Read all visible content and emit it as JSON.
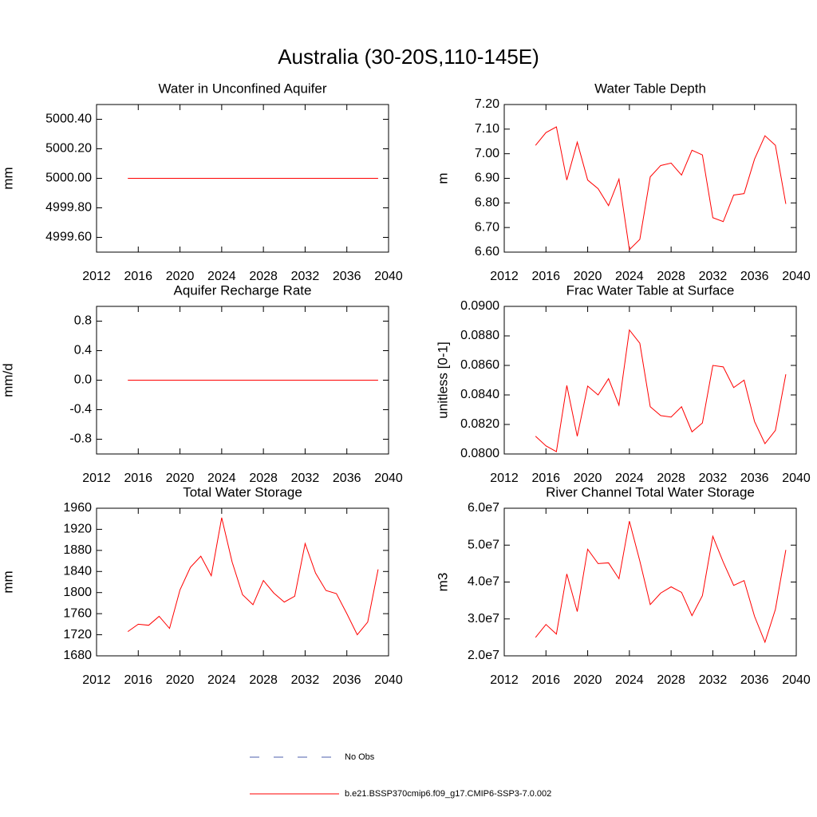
{
  "title": "Australia (30-20S,110-145E)",
  "legend": [
    {
      "name": "No Obs",
      "color": "#4d5fae",
      "dashed": true
    },
    {
      "name": "b.e21.BSSP370cmip6.f09_g17.CMIP6-SSP3-7.0.002",
      "color": "#ff0000",
      "dashed": false
    }
  ],
  "chart_data": [
    {
      "type": "line",
      "title": "Water in Unconfined Aquifer",
      "y_label": "mm",
      "x": [
        2015,
        2016,
        2017,
        2018,
        2019,
        2020,
        2021,
        2022,
        2023,
        2024,
        2025,
        2026,
        2027,
        2028,
        2029,
        2030,
        2031,
        2032,
        2033,
        2034,
        2035,
        2036,
        2037,
        2038,
        2039
      ],
      "xlim": [
        2012,
        2040
      ],
      "xticks": [
        2012,
        2016,
        2020,
        2024,
        2028,
        2032,
        2036,
        2040
      ],
      "ylim": [
        4999.5,
        5000.5
      ],
      "yticks": [
        {
          "value": 4999.6,
          "label": "4999.60"
        },
        {
          "value": 4999.8,
          "label": "4999.80"
        },
        {
          "value": 5000,
          "label": "5000.00"
        },
        {
          "value": 5000.2,
          "label": "5000.20"
        },
        {
          "value": 5000.4,
          "label": "5000.40"
        }
      ],
      "series": [
        {
          "color": "#ff0000",
          "values": [
            5000,
            5000,
            5000,
            5000,
            5000,
            5000,
            5000,
            5000,
            5000,
            5000,
            5000,
            5000,
            5000,
            5000,
            5000,
            5000,
            5000,
            5000,
            5000,
            5000,
            5000,
            5000,
            5000,
            5000,
            5000
          ]
        }
      ]
    },
    {
      "type": "line",
      "title": "Water Table Depth",
      "y_label": "m",
      "x": [
        2015,
        2016,
        2017,
        2018,
        2019,
        2020,
        2021,
        2022,
        2023,
        2024,
        2025,
        2026,
        2027,
        2028,
        2029,
        2030,
        2031,
        2032,
        2033,
        2034,
        2035,
        2036,
        2037,
        2038,
        2039
      ],
      "xlim": [
        2012,
        2040
      ],
      "xticks": [
        2012,
        2016,
        2020,
        2024,
        2028,
        2032,
        2036,
        2040
      ],
      "ylim": [
        6.6,
        7.2
      ],
      "yticks": [
        {
          "value": 6.6,
          "label": "6.60"
        },
        {
          "value": 6.7,
          "label": "6.70"
        },
        {
          "value": 6.8,
          "label": "6.80"
        },
        {
          "value": 6.9,
          "label": "6.90"
        },
        {
          "value": 7.0,
          "label": "7.00"
        },
        {
          "value": 7.1,
          "label": "7.10"
        },
        {
          "value": 7.2,
          "label": "7.20"
        }
      ],
      "series": [
        {
          "color": "#ff0000",
          "values": [
            7.034,
            7.086,
            7.109,
            6.893,
            7.047,
            6.893,
            6.858,
            6.789,
            6.897,
            6.61,
            6.652,
            6.906,
            6.952,
            6.962,
            6.913,
            7.014,
            6.995,
            6.74,
            6.724,
            6.832,
            6.838,
            6.978,
            7.073,
            7.034,
            6.796
          ]
        }
      ]
    },
    {
      "type": "line",
      "title": "Aquifer Recharge Rate",
      "y_label": "mm/d",
      "x": [
        2015,
        2016,
        2017,
        2018,
        2019,
        2020,
        2021,
        2022,
        2023,
        2024,
        2025,
        2026,
        2027,
        2028,
        2029,
        2030,
        2031,
        2032,
        2033,
        2034,
        2035,
        2036,
        2037,
        2038,
        2039
      ],
      "xlim": [
        2012,
        2040
      ],
      "xticks": [
        2012,
        2016,
        2020,
        2024,
        2028,
        2032,
        2036,
        2040
      ],
      "ylim": [
        -1,
        1
      ],
      "yticks": [
        -0.8,
        -0.4,
        {
          "value": 0,
          "label": "0.0"
        },
        0.4,
        0.8
      ],
      "series": [
        {
          "color": "#ff0000",
          "values": [
            0,
            0,
            0,
            0,
            0,
            0,
            0,
            0,
            0,
            0,
            0,
            0,
            0,
            0,
            0,
            0,
            0,
            0,
            0,
            0,
            0,
            0,
            0,
            0,
            0
          ]
        }
      ]
    },
    {
      "type": "line",
      "title": "Frac Water Table at Surface",
      "y_label": "unitless [0-1]",
      "x": [
        2015,
        2016,
        2017,
        2018,
        2019,
        2020,
        2021,
        2022,
        2023,
        2024,
        2025,
        2026,
        2027,
        2028,
        2029,
        2030,
        2031,
        2032,
        2033,
        2034,
        2035,
        2036,
        2037,
        2038,
        2039
      ],
      "xlim": [
        2012,
        2040
      ],
      "xticks": [
        2012,
        2016,
        2020,
        2024,
        2028,
        2032,
        2036,
        2040
      ],
      "ylim": [
        0.08,
        0.09
      ],
      "yticks": [
        {
          "value": 0.08,
          "label": "0.0800"
        },
        {
          "value": 0.082,
          "label": "0.0820"
        },
        {
          "value": 0.084,
          "label": "0.0840"
        },
        {
          "value": 0.086,
          "label": "0.0860"
        },
        {
          "value": 0.088,
          "label": "0.0880"
        },
        {
          "value": 0.09,
          "label": "0.0900"
        }
      ],
      "series": [
        {
          "color": "#ff0000",
          "values": [
            0.0812,
            0.08055,
            0.08016,
            0.08464,
            0.0812,
            0.0846,
            0.084,
            0.0851,
            0.0833,
            0.0884,
            0.0875,
            0.0832,
            0.0826,
            0.0825,
            0.0832,
            0.0815,
            0.0821,
            0.086,
            0.0859,
            0.0845,
            0.085,
            0.0822,
            0.0807,
            0.0816,
            0.0854
          ]
        }
      ]
    },
    {
      "type": "line",
      "title": "Total Water Storage",
      "y_label": "mm",
      "x": [
        2015,
        2016,
        2017,
        2018,
        2019,
        2020,
        2021,
        2022,
        2023,
        2024,
        2025,
        2026,
        2027,
        2028,
        2029,
        2030,
        2031,
        2032,
        2033,
        2034,
        2035,
        2036,
        2037,
        2038,
        2039
      ],
      "xlim": [
        2012,
        2040
      ],
      "xticks": [
        2012,
        2016,
        2020,
        2024,
        2028,
        2032,
        2036,
        2040
      ],
      "ylim": [
        1680,
        1960
      ],
      "yticks": [
        1680,
        1720,
        1760,
        1800,
        1840,
        1880,
        1920,
        1960
      ],
      "series": [
        {
          "color": "#ff0000",
          "values": [
            1726,
            1740,
            1738,
            1755,
            1732,
            1805,
            1848,
            1869,
            1832,
            1942,
            1858,
            1796,
            1777,
            1823,
            1799,
            1782,
            1793,
            1893,
            1837,
            1804,
            1798,
            1760,
            1720,
            1744,
            1844
          ]
        }
      ]
    },
    {
      "type": "line",
      "title": "River Channel Total Water Storage",
      "y_label": "m3",
      "x": [
        2015,
        2016,
        2017,
        2018,
        2019,
        2020,
        2021,
        2022,
        2023,
        2024,
        2025,
        2026,
        2027,
        2028,
        2029,
        2030,
        2031,
        2032,
        2033,
        2034,
        2035,
        2036,
        2037,
        2038,
        2039
      ],
      "xlim": [
        2012,
        2040
      ],
      "xticks": [
        2012,
        2016,
        2020,
        2024,
        2028,
        2032,
        2036,
        2040
      ],
      "ylim": [
        20000000,
        60000000
      ],
      "yticks": [
        {
          "value": 20000000,
          "label": "2.0e7"
        },
        {
          "value": 30000000,
          "label": "3.0e7"
        },
        {
          "value": 40000000,
          "label": "4.0e7"
        },
        {
          "value": 50000000,
          "label": "5.0e7"
        },
        {
          "value": 60000000,
          "label": "6.0e7"
        }
      ],
      "series": [
        {
          "color": "#ff0000",
          "values": [
            25000000,
            28500000,
            25900000,
            42200000,
            32000000,
            48900000,
            45000000,
            45200000,
            40900000,
            56500000,
            45700000,
            33900000,
            37000000,
            38700000,
            37200000,
            30900000,
            36300000,
            52400000,
            45400000,
            39100000,
            40400000,
            30700000,
            23700000,
            32600000,
            48700000
          ]
        }
      ]
    }
  ]
}
